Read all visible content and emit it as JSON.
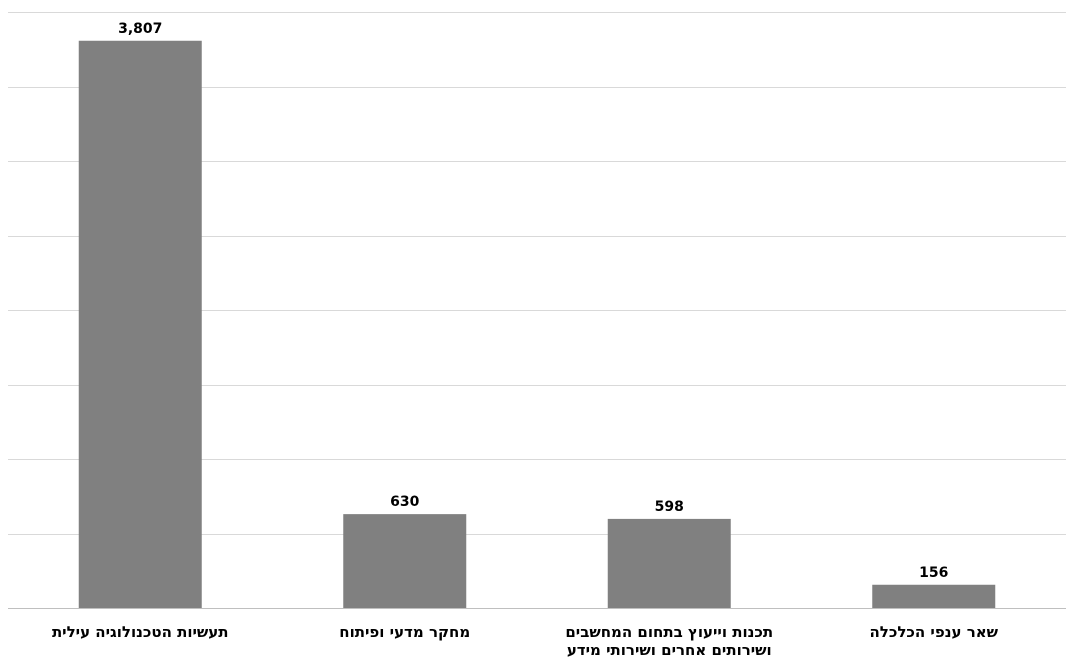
{
  "chart_data": {
    "type": "bar",
    "title": "",
    "xlabel": "",
    "ylabel": "",
    "ylim": [
      0,
      4000
    ],
    "grid": true,
    "y_tick_step": 500,
    "y_tick_labels_shown": false,
    "categories": [
      [
        "תעשיות הטכנולוגיה עילית"
      ],
      [
        "מחקר מדעי ופיתוח"
      ],
      [
        "תכנות וייעוץ בתחום המחשבים",
        "ושירותים אחרים ושירותי מידע"
      ],
      [
        "שאר ענפי הכלכלה"
      ]
    ],
    "values": [
      3807,
      630,
      598,
      156
    ],
    "data_labels": [
      "3,807",
      "630",
      "598",
      "156"
    ],
    "bar_color": "#808080",
    "grid_color": "#d9d9d9"
  }
}
